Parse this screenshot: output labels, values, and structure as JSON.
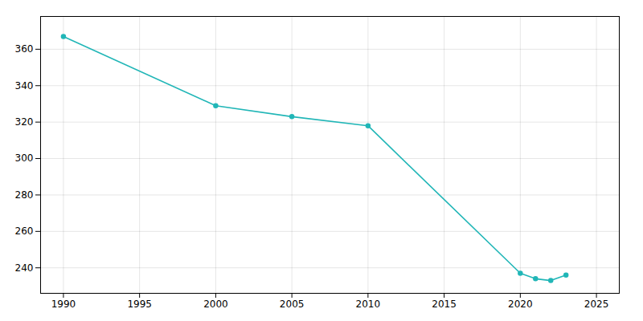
{
  "chart_data": {
    "type": "line",
    "x": [
      1990,
      2000,
      2005,
      2010,
      2020,
      2021,
      2022,
      2023
    ],
    "values": [
      367,
      329,
      323,
      318,
      237,
      234,
      233,
      236
    ],
    "color": "#21b6b7",
    "marker": "circle",
    "xlim": [
      1988.5,
      2026.5
    ],
    "xticks": [
      1990,
      1995,
      2000,
      2005,
      2010,
      2015,
      2020,
      2025
    ],
    "ylim": [
      226,
      378
    ],
    "yticks": [
      240,
      260,
      280,
      300,
      320,
      340,
      360
    ],
    "grid": true
  }
}
